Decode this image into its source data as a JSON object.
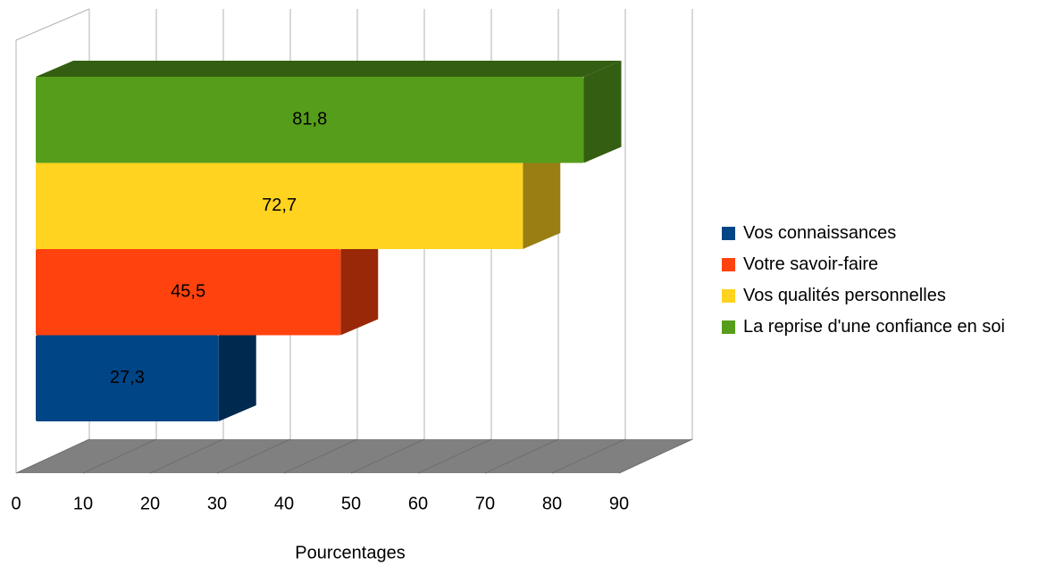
{
  "chart_data": {
    "type": "bar",
    "orientation": "horizontal",
    "categories": [
      null
    ],
    "series": [
      {
        "name": "Vos connaissances",
        "color": "#004586",
        "values": [
          27.3
        ],
        "value_labels": [
          "27,3"
        ]
      },
      {
        "name": "Votre savoir-faire",
        "color": "#ff420e",
        "values": [
          45.5
        ],
        "value_labels": [
          "45,5"
        ]
      },
      {
        "name": "Vos qualités personnelles",
        "color": "#ffd320",
        "values": [
          72.7
        ],
        "value_labels": [
          "72,7"
        ]
      },
      {
        "name": "La reprise d'une confiance en soi",
        "color": "#579d1c",
        "values": [
          81.8
        ],
        "value_labels": [
          "81,8"
        ]
      }
    ],
    "xlabel": "Pourcentages",
    "xlim": [
      0,
      90
    ],
    "xticks": [
      0,
      10,
      20,
      30,
      40,
      50,
      60,
      70,
      80,
      90
    ],
    "grid": true,
    "legend": "right"
  }
}
